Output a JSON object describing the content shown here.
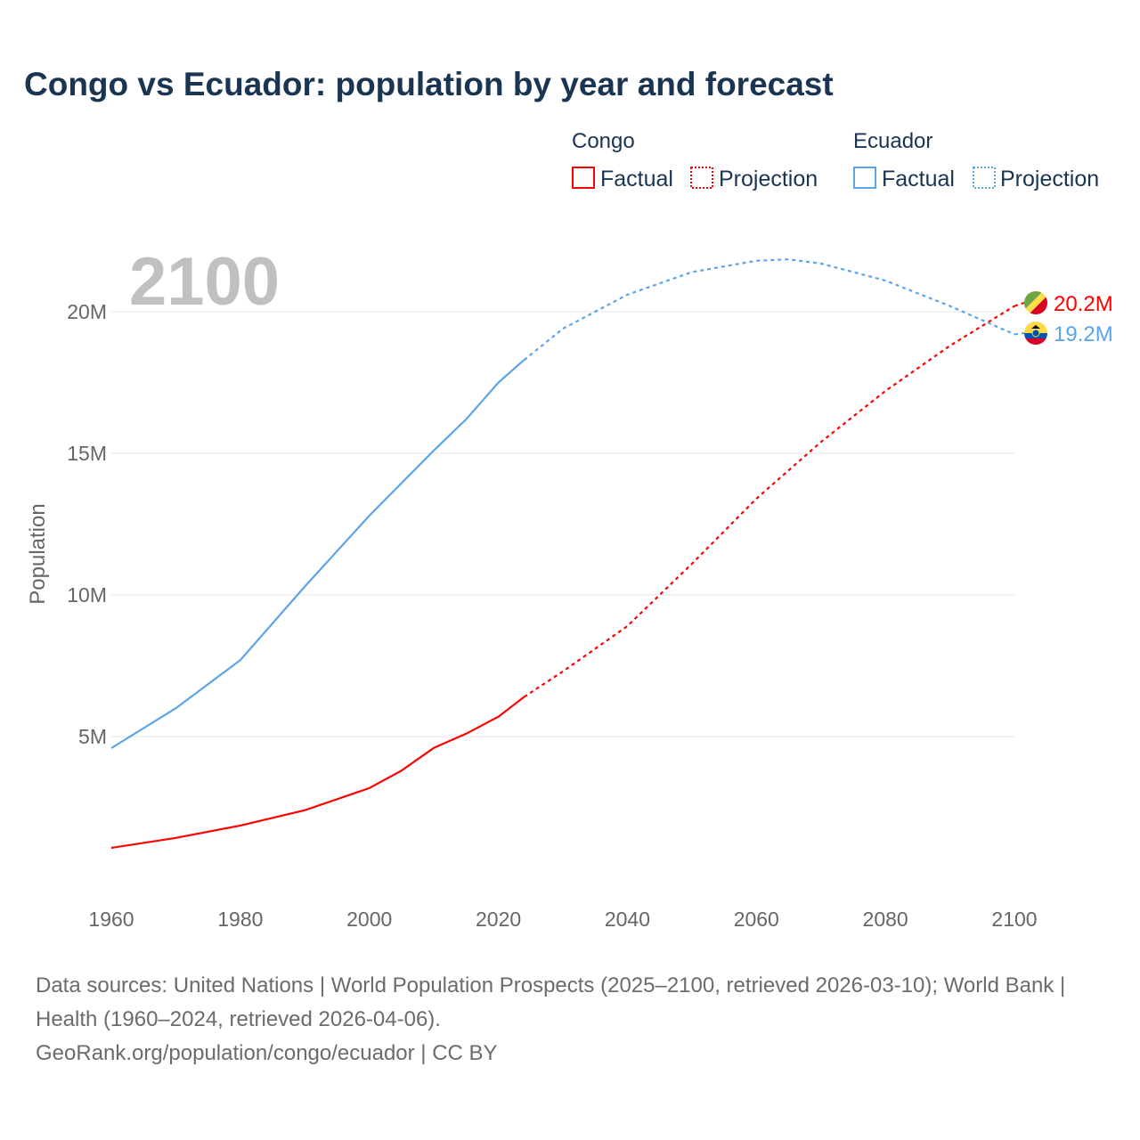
{
  "title": "Congo vs Ecuador: population by year and forecast",
  "year_label": "2100",
  "legend": {
    "group1": "Congo",
    "group2": "Ecuador",
    "factual": "Factual",
    "projection": "Projection"
  },
  "source": {
    "line1": "Data sources: United Nations | World Population Prospects (2025–2100, retrieved 2026-03-10); World Bank | Health (1960–2024, retrieved 2026-04-06).",
    "line2": "GeoRank.org/population/congo/ecuador | CC BY"
  },
  "chart_data": {
    "type": "line",
    "ylabel": "Population",
    "xlim": [
      1960,
      2100
    ],
    "ylim": [
      0,
      22
    ],
    "x_ticks": [
      "1960",
      "1980",
      "2000",
      "2020",
      "2040",
      "2060",
      "2080",
      "2100"
    ],
    "y_ticks": [
      {
        "v": 5,
        "label": "5M"
      },
      {
        "v": 10,
        "label": "10M"
      },
      {
        "v": 15,
        "label": "15M"
      },
      {
        "v": 20,
        "label": "20M"
      }
    ],
    "series": [
      {
        "name": "Congo",
        "color": "#ff0000",
        "end_label": "20.2M",
        "factual": [
          [
            1960,
            1.07
          ],
          [
            1970,
            1.42
          ],
          [
            1980,
            1.86
          ],
          [
            1990,
            2.4
          ],
          [
            2000,
            3.18
          ],
          [
            2005,
            3.8
          ],
          [
            2010,
            4.6
          ],
          [
            2015,
            5.1
          ],
          [
            2020,
            5.7
          ],
          [
            2024,
            6.4
          ]
        ],
        "projection": [
          [
            2024,
            6.4
          ],
          [
            2030,
            7.3
          ],
          [
            2040,
            8.9
          ],
          [
            2050,
            11.1
          ],
          [
            2060,
            13.4
          ],
          [
            2070,
            15.4
          ],
          [
            2080,
            17.2
          ],
          [
            2090,
            18.8
          ],
          [
            2100,
            20.2
          ]
        ]
      },
      {
        "name": "Ecuador",
        "color": "#5ba4ea",
        "end_label": "19.2M",
        "factual": [
          [
            1960,
            4.59
          ],
          [
            1970,
            6.0
          ],
          [
            1980,
            7.7
          ],
          [
            1990,
            10.3
          ],
          [
            2000,
            12.8
          ],
          [
            2010,
            15.1
          ],
          [
            2015,
            16.2
          ],
          [
            2020,
            17.5
          ],
          [
            2024,
            18.3
          ]
        ],
        "projection": [
          [
            2024,
            18.3
          ],
          [
            2030,
            19.4
          ],
          [
            2040,
            20.6
          ],
          [
            2050,
            21.4
          ],
          [
            2060,
            21.8
          ],
          [
            2065,
            21.85
          ],
          [
            2070,
            21.7
          ],
          [
            2080,
            21.1
          ],
          [
            2090,
            20.2
          ],
          [
            2100,
            19.2
          ]
        ]
      }
    ]
  }
}
